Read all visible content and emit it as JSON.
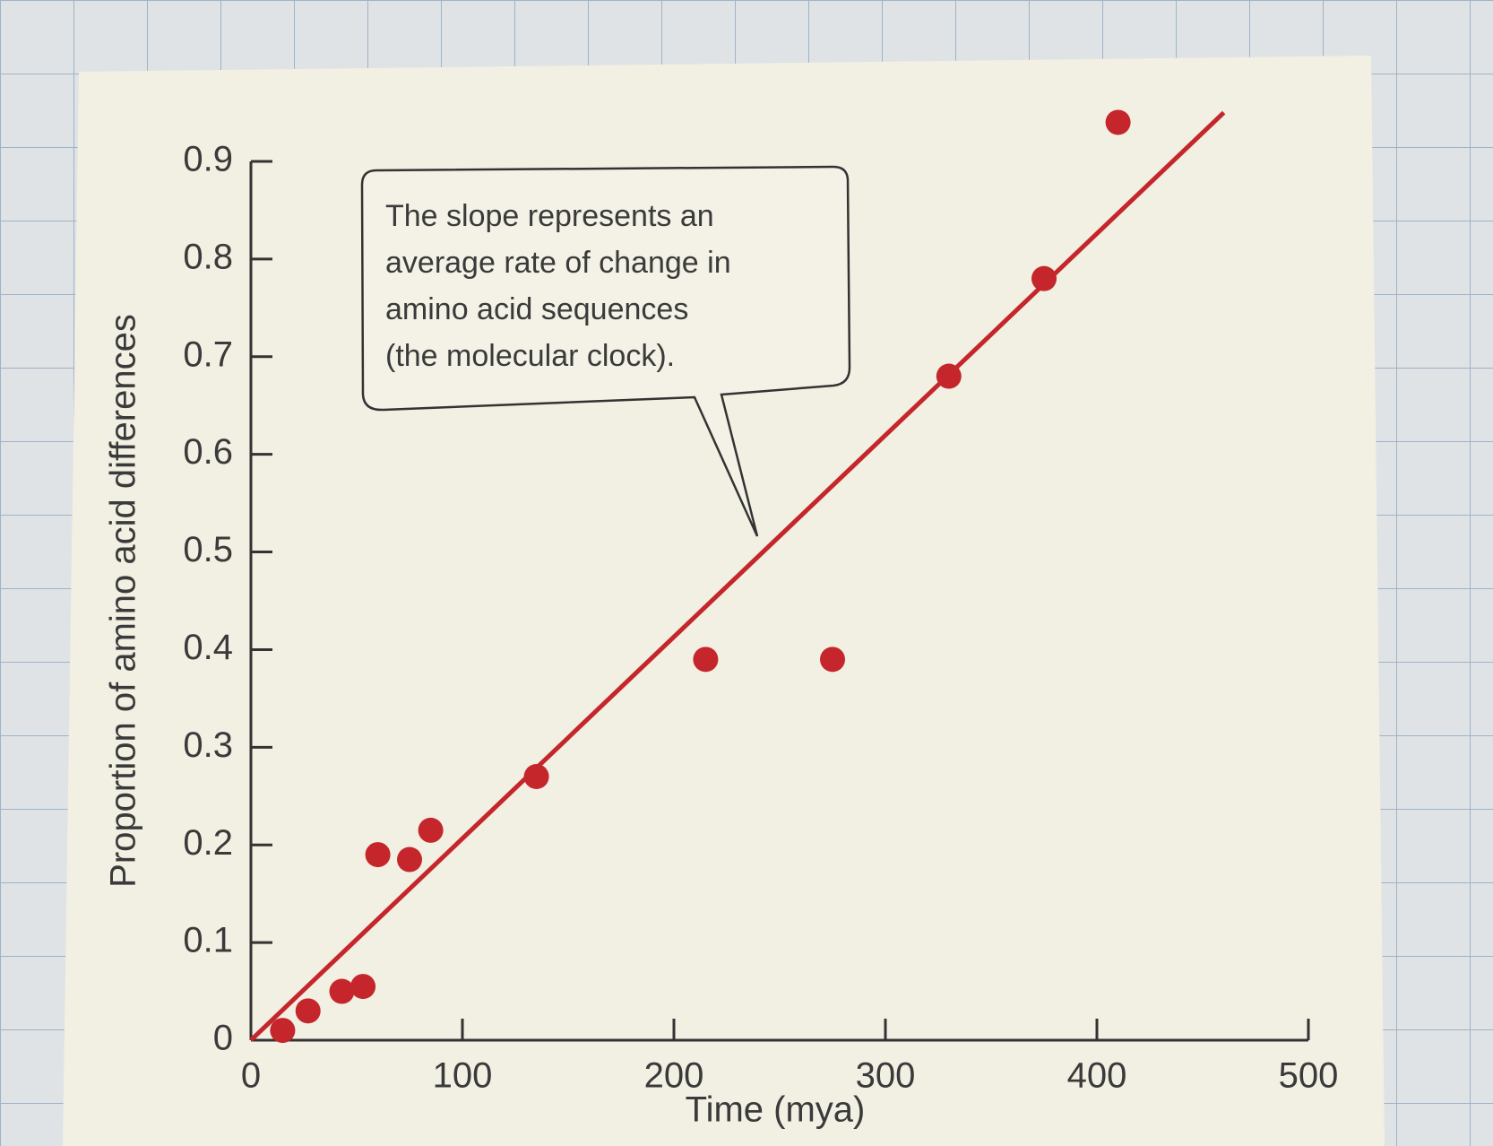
{
  "chart_data": {
    "type": "scatter",
    "xlabel": "Time (mya)",
    "ylabel": "Proportion of amino acid differences",
    "annotation": [
      "The slope represents an",
      "average rate of change in",
      "amino acid sequences",
      "(the molecular clock)."
    ],
    "xlim": [
      0,
      500
    ],
    "ylim": [
      0,
      0.9
    ],
    "xticks": [
      0,
      100,
      200,
      300,
      400,
      500
    ],
    "yticks": [
      0,
      0.1,
      0.2,
      0.3,
      0.4,
      0.5,
      0.6,
      0.7,
      0.8,
      0.9
    ],
    "points": {
      "color": "#c4262b",
      "x": [
        15,
        27,
        43,
        53,
        60,
        75,
        85,
        135,
        215,
        275,
        330,
        375,
        410
      ],
      "values": [
        0.01,
        0.03,
        0.05,
        0.055,
        0.19,
        0.185,
        0.215,
        0.27,
        0.39,
        0.39,
        0.68,
        0.78,
        0.94
      ]
    },
    "trend_line": {
      "color": "#c4262b",
      "x": [
        0,
        460
      ],
      "values": [
        0,
        0.95
      ]
    }
  }
}
